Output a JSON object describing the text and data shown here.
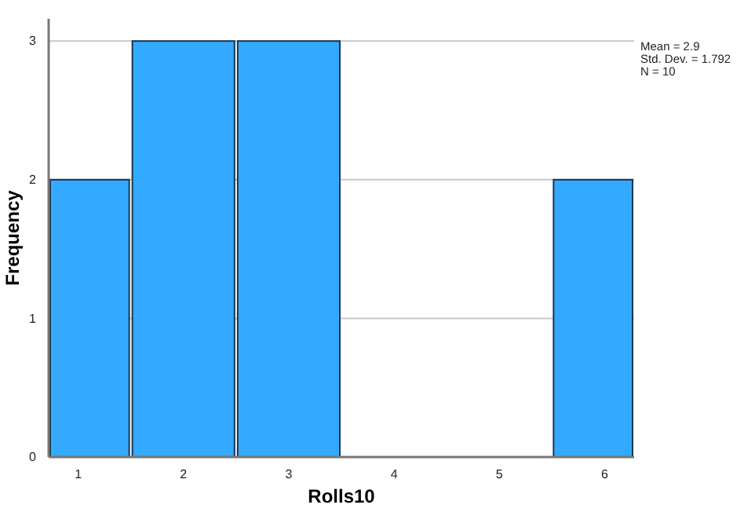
{
  "chart_data": {
    "type": "histogram",
    "xlabel": "Rolls10",
    "ylabel": "Frequency",
    "bins": [
      0.72,
      1.5,
      2.5,
      3.5,
      5.5,
      6.28
    ],
    "values": [
      2,
      3,
      3,
      0,
      2
    ],
    "color": "#33aaff",
    "xlim": [
      0.72,
      6.28
    ],
    "xticks": [
      1,
      2,
      3,
      4,
      5,
      6
    ],
    "ylim": [
      0,
      3.16
    ],
    "yticks": [
      0,
      1,
      2,
      3
    ],
    "grid": "y",
    "annotations": [
      "Mean = 2.9",
      "Std. Dev. = 1.792",
      "N = 10"
    ]
  }
}
